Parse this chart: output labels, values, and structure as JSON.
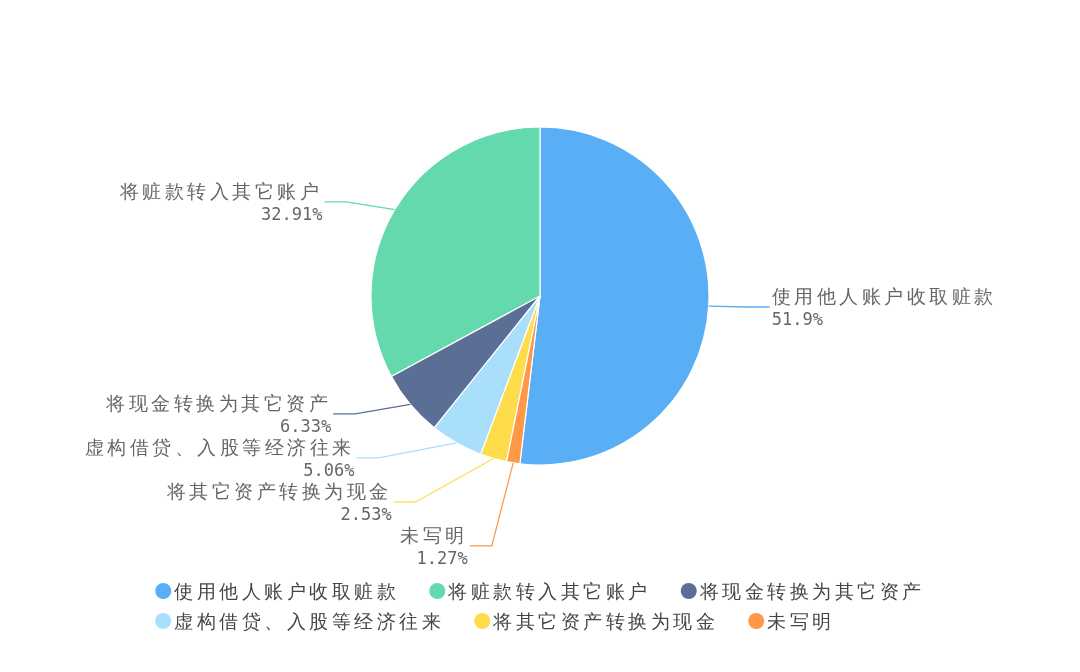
{
  "chart_data": {
    "type": "pie",
    "categories": [
      "使用他人账户收取赃款",
      "将赃款转入其它账户",
      "将现金转换为其它资产",
      "虚构借贷、入股等经济往来",
      "将其它资产转换为现金",
      "未写明"
    ],
    "values": [
      51.9,
      32.91,
      6.33,
      5.06,
      2.53,
      1.27
    ],
    "value_labels": [
      "51.9%",
      "32.91%",
      "6.33%",
      "5.06%",
      "2.53%",
      "1.27%"
    ],
    "colors": [
      "#5aaef6",
      "#63d9ad",
      "#5a6e96",
      "#a9dffa",
      "#ffdc4c",
      "#ff9848"
    ],
    "legend": "bottom"
  }
}
